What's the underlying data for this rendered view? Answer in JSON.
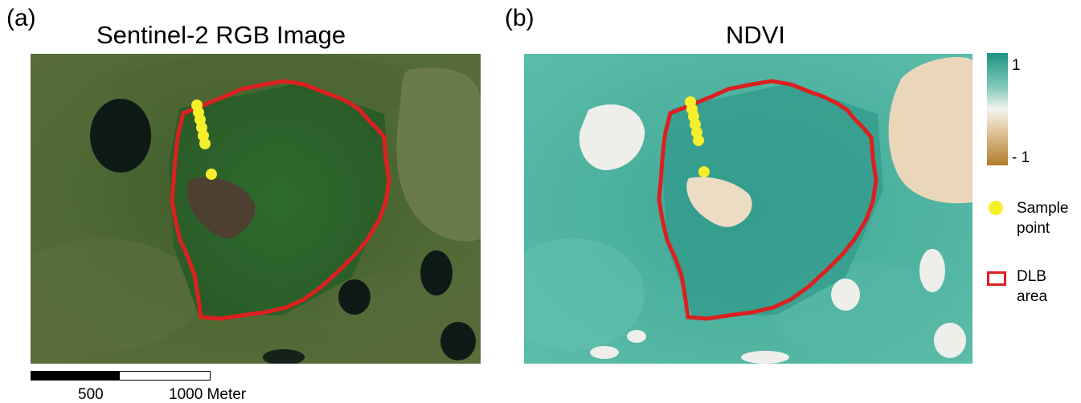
{
  "panel_a": {
    "label": "(a)",
    "title": "Sentinel-2 RGB Image"
  },
  "panel_b": {
    "label": "(b)",
    "title": "NDVI"
  },
  "legend": {
    "colorbar_max": "1",
    "colorbar_min": "- 1",
    "sample_point_label_line1": "Sample",
    "sample_point_label_line2": "point",
    "dlb_label_line1": "DLB",
    "dlb_label_line2": "area"
  },
  "scalebar": {
    "label_500": "500",
    "label_1000": "1000 Meter"
  },
  "colors": {
    "dlb_outline": "#dc2020",
    "sample_point": "#f5f02a",
    "ndvi_high": "#1c9380",
    "ndvi_mid": "#f4f4ee",
    "ndvi_low": "#b07d2b"
  }
}
